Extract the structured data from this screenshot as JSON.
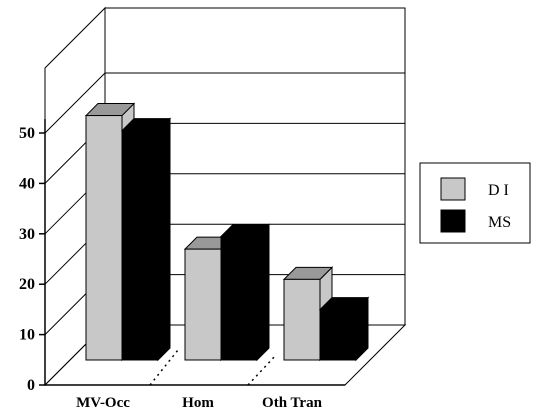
{
  "chart_data": {
    "type": "bar",
    "categories": [
      "MV-Occ",
      "Hom",
      "Oth Tran"
    ],
    "series": [
      {
        "name": "D I",
        "values": [
          48.5,
          22,
          16
        ],
        "color": "#c8c8c8",
        "top_color": "#999999"
      },
      {
        "name": "MS",
        "values": [
          45.5,
          24.5,
          10
        ],
        "color": "#000000",
        "top_color": "#000000"
      }
    ],
    "ylim": [
      0,
      50
    ],
    "yticks": [
      "0",
      "10",
      "20",
      "30",
      "40",
      "50"
    ],
    "grid": true,
    "legend_position": "right",
    "title": "",
    "xlabel": "",
    "ylabel": ""
  }
}
